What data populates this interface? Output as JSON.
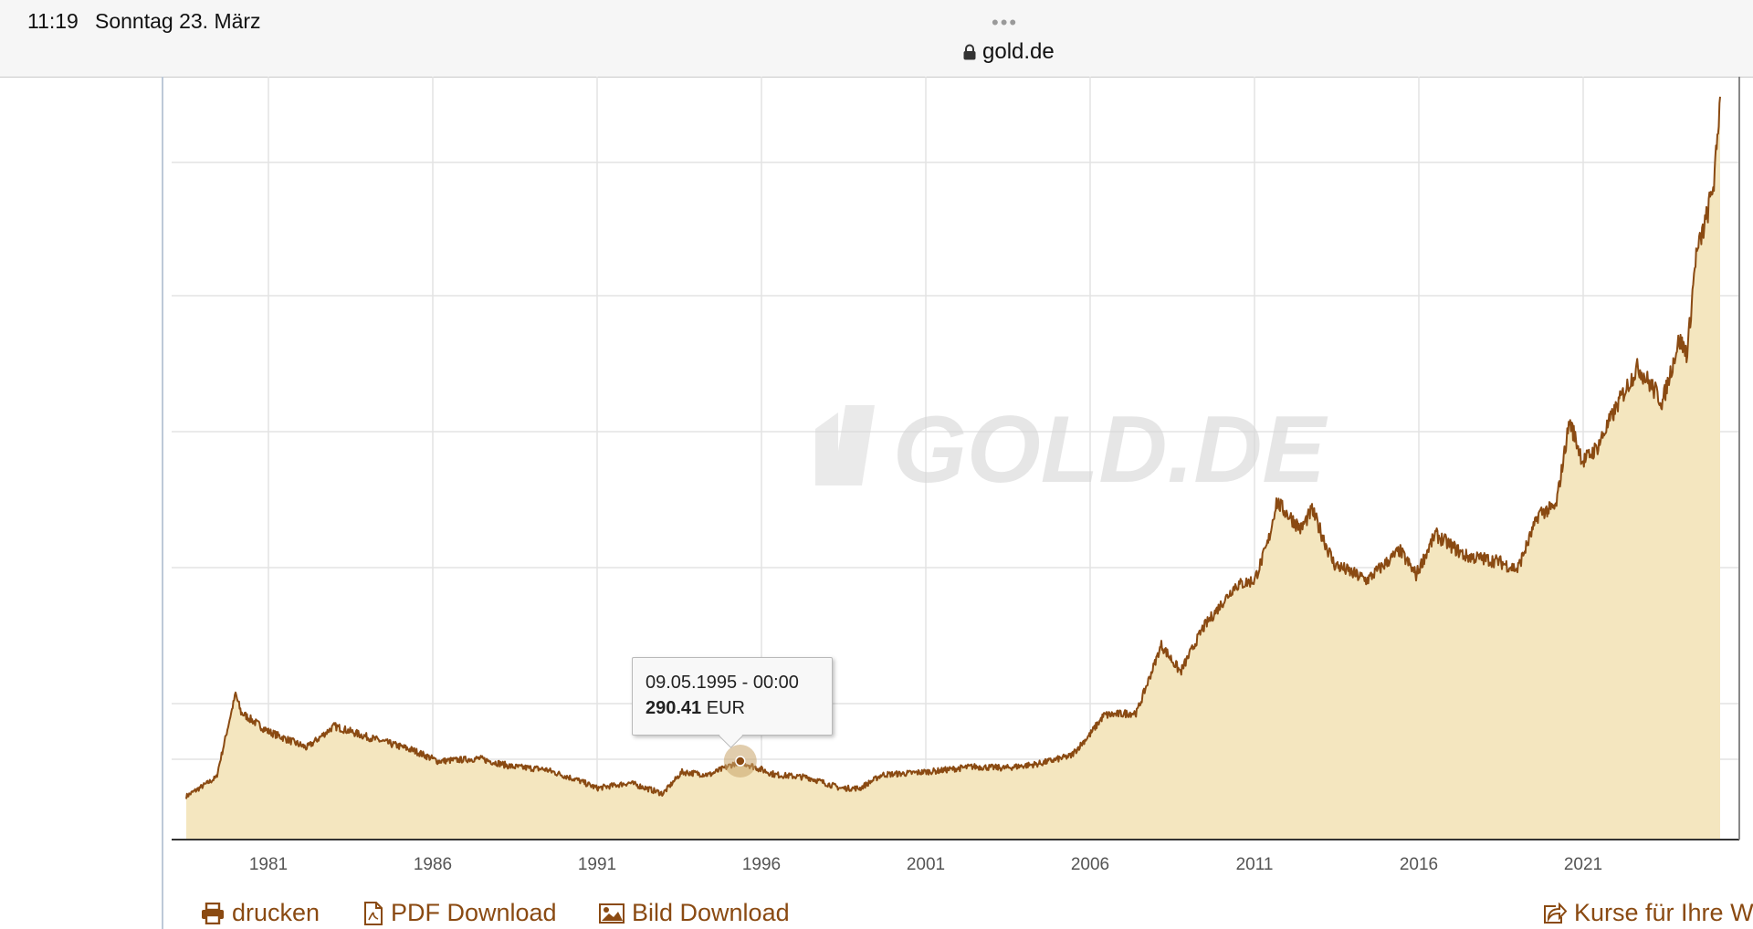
{
  "status_bar": {
    "time": "11:19",
    "date": "Sonntag 23. März"
  },
  "browser": {
    "url": "gold.de",
    "menu_dots": "•••"
  },
  "watermark": "GOLD.DE",
  "tooltip": {
    "date": "09.05.1995 - 00:00",
    "value": "290.41",
    "unit": "EUR"
  },
  "actions": {
    "print": "drucken",
    "pdf": "PDF Download",
    "image": "Bild Download",
    "rates": "Kurse für Ihre W"
  },
  "colors": {
    "line": "#8a4a12",
    "area": "#f4e6bf",
    "grid": "#e3e3e3",
    "link": "#8a4a12"
  },
  "chart_data": {
    "type": "area",
    "title": "",
    "xlabel": "",
    "ylabel": "",
    "y_unit": "EUR",
    "x_ticks": [
      "1981",
      "1986",
      "1991",
      "1996",
      "2001",
      "2006",
      "2011",
      "2016",
      "2021"
    ],
    "xlim": [
      "1978-07",
      "2025-03"
    ],
    "grid": true,
    "series": [
      {
        "x": [
          "1978-07",
          "1979-06",
          "1980-01",
          "1980-03",
          "1981-01",
          "1982-03",
          "1983-01",
          "1984-01",
          "1985-06",
          "1986-03",
          "1987-06",
          "1988-06",
          "1989-06",
          "1990-06",
          "1991-01",
          "1992-01",
          "1993-01",
          "1993-08",
          "1994-06",
          "1995-05",
          "1996-06",
          "1997-06",
          "1998-06",
          "1999-01",
          "1999-09",
          "2000-06",
          "2001-06",
          "2002-06",
          "2003-06",
          "2004-06",
          "2005-06",
          "2006-01",
          "2006-06",
          "2007-06",
          "2008-03",
          "2008-10",
          "2009-06",
          "2010-06",
          "2011-01",
          "2011-06",
          "2011-09",
          "2012-06",
          "2012-10",
          "2013-06",
          "2014-06",
          "2015-06",
          "2015-12",
          "2016-07",
          "2017-06",
          "2018-06",
          "2019-01",
          "2019-09",
          "2020-03",
          "2020-08",
          "2021-01",
          "2021-06",
          "2022-03",
          "2022-09",
          "2023-06",
          "2023-12",
          "2024-03",
          "2024-06",
          "2024-10",
          "2025-01",
          "2025-03"
        ],
        "y": [
          160,
          230,
          540,
          470,
          400,
          340,
          420,
          380,
          330,
          290,
          300,
          270,
          260,
          220,
          190,
          210,
          170,
          250,
          240,
          290,
          240,
          230,
          190,
          190,
          240,
          245,
          255,
          270,
          265,
          280,
          310,
          390,
          460,
          470,
          720,
          620,
          780,
          940,
          960,
          1100,
          1250,
          1150,
          1220,
          1020,
          960,
          1070,
          980,
          1130,
          1050,
          1030,
          1000,
          1210,
          1230,
          1550,
          1400,
          1450,
          1640,
          1750,
          1620,
          1850,
          1800,
          2150,
          2300,
          2450,
          2750
        ]
      }
    ],
    "highlight": {
      "x": "1995-05-09",
      "y": 290.41
    }
  }
}
